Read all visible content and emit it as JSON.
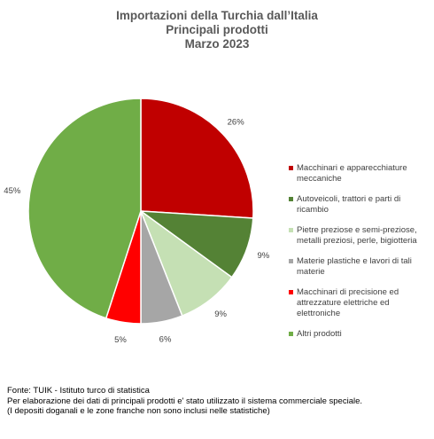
{
  "chart_data": {
    "type": "pie",
    "title_lines": [
      "Importazioni della Turchia dall’Italia",
      "Principali prodotti",
      "Marzo 2023"
    ],
    "categories": [
      "Macchinari e apparecchiature meccaniche",
      "Autoveicoli, trattori e parti di ricambio",
      "Pietre preziose e semi-preziose, metalli preziosi, perle, bigiotteria",
      "Materie plastiche e lavori di tali materie",
      "Macchinari di precisione ed attrezzature elettriche ed elettroniche",
      "Altri prodotti"
    ],
    "values": [
      26,
      9,
      9,
      6,
      5,
      45
    ],
    "value_labels": [
      "26%",
      "9%",
      "9%",
      "6%",
      "5%",
      "45%"
    ],
    "colors": [
      "#c00000",
      "#548235",
      "#c5e0b4",
      "#a6a6a6",
      "#ff0000",
      "#70ad47"
    ],
    "legend_position": "right"
  },
  "footer": {
    "source_lines": [
      "Fonte: TUIK - Istituto turco di statistica",
      "Per elaborazione dei dati di principali prodotti e' stato utilizzato il sistema commerciale speciale.",
      "(I depositi doganali e le zone franche non sono inclusi nelle statistiche)"
    ]
  }
}
